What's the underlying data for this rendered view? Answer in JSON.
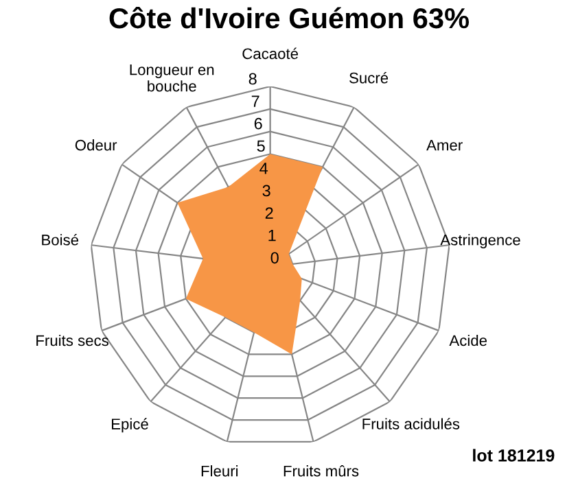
{
  "chart_data": {
    "type": "radar",
    "title": "Côte d'Ivoire Guémon 63%",
    "categories": [
      "Cacaoté",
      "Sucré",
      "Amer",
      "Astringence",
      "Acide",
      "Fruits acidulés",
      "Fruits mûrs",
      "Fleuri",
      "Epicé",
      "Fruits secs",
      "Boisé",
      "Odeur",
      "Longueur en bouche"
    ],
    "series": [
      {
        "color": "#f79646",
        "values": [
          5,
          5,
          1,
          1,
          1.5,
          2,
          4,
          3,
          3,
          4,
          3,
          5,
          4
        ]
      }
    ],
    "ylim": [
      0,
      8
    ],
    "yticks": [
      0,
      1,
      2,
      3,
      4,
      5,
      6,
      7,
      8
    ],
    "grid": true,
    "legend": false,
    "annotations": [
      "lot 181219"
    ]
  }
}
